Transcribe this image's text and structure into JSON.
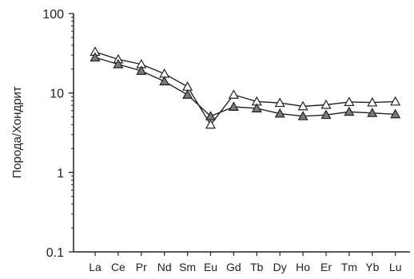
{
  "chart_data": {
    "type": "line",
    "ylabel": "Порода/Хондрит",
    "xlabel": "",
    "yscale": "log",
    "ylim": [
      0.1,
      100
    ],
    "yticks": [
      "100",
      "10",
      "1",
      "0.1"
    ],
    "categories": [
      "La",
      "Ce",
      "Pr",
      "Nd",
      "Sm",
      "Eu",
      "Gd",
      "Tb",
      "Dy",
      "Ho",
      "Er",
      "Tm",
      "Yb",
      "Lu"
    ],
    "series": [
      {
        "marker": "triangle-open",
        "color": "#ffffff",
        "values": [
          33,
          26.5,
          23,
          17.5,
          12,
          4.0,
          9.5,
          7.8,
          7.5,
          6.8,
          7.1,
          7.7,
          7.6,
          7.8
        ]
      },
      {
        "marker": "triangle-filled",
        "color": "#7a7a7a",
        "values": [
          28,
          23,
          19,
          14,
          9.5,
          5.1,
          6.7,
          6.4,
          5.5,
          5.1,
          5.3,
          5.8,
          5.6,
          5.4
        ]
      }
    ],
    "grid": false,
    "legend": "none"
  }
}
